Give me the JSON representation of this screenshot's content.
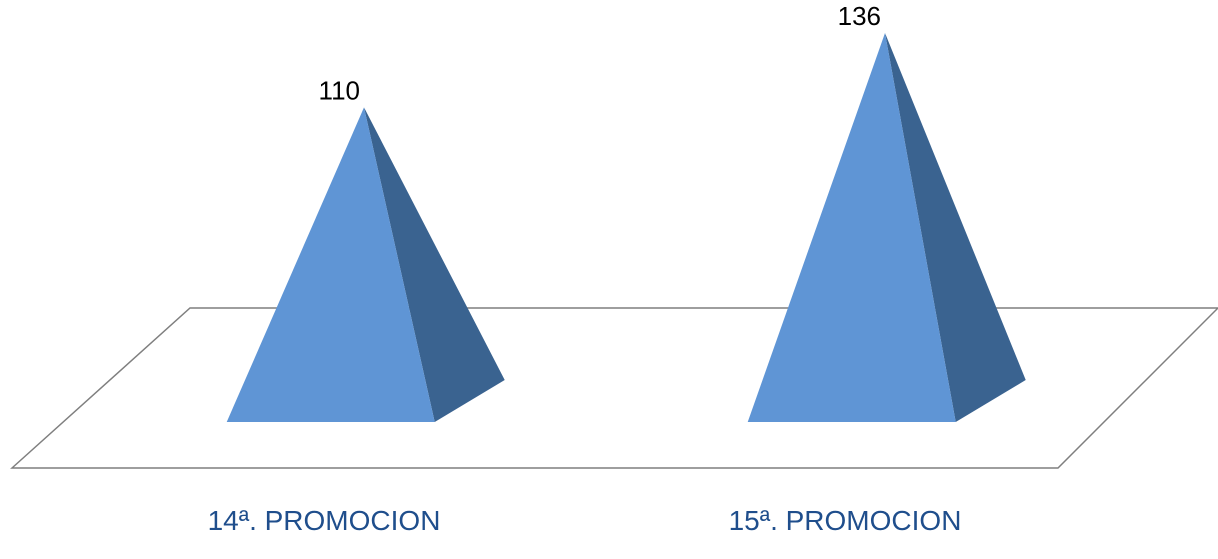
{
  "chart_data": {
    "type": "bar",
    "shape": "pyramid",
    "categories": [
      "14ª. PROMOCION",
      "15ª.  PROMOCION"
    ],
    "values": [
      110,
      136
    ],
    "ylim": [
      0,
      140
    ],
    "grid": false,
    "legend": "none",
    "colors": {
      "face": "#5f95d5",
      "side": "#3a6390",
      "floor_stroke": "#7f7f7f",
      "category_label": "#1f4e8c",
      "data_label": "#000000"
    }
  }
}
